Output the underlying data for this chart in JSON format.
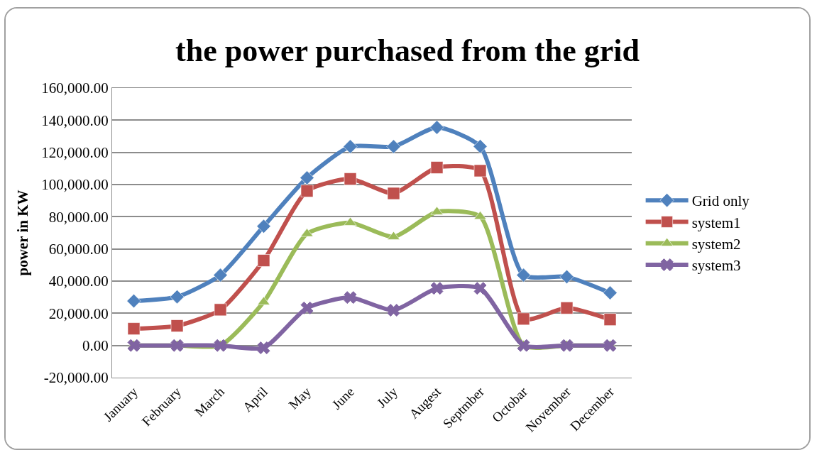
{
  "chart_data": {
    "type": "line",
    "title": "the power purchased from the grid",
    "ylabel": "power in KW",
    "categories": [
      "January",
      "February",
      "March",
      "April",
      "May",
      "June",
      "July",
      "Augest",
      "Septmber",
      "Octobar",
      "November",
      "December"
    ],
    "series": [
      {
        "name": "Grid only",
        "color": "#4f81bd",
        "marker": "diamond",
        "values": [
          27600,
          30200,
          43700,
          74100,
          104200,
          123600,
          123600,
          135500,
          123700,
          43700,
          42700,
          32700
        ]
      },
      {
        "name": "system1",
        "color": "#c0504d",
        "marker": "square",
        "values": [
          10400,
          12200,
          22200,
          52800,
          96000,
          103500,
          94500,
          110600,
          108600,
          16500,
          23300,
          16100
        ]
      },
      {
        "name": "system2",
        "color": "#9bbb59",
        "marker": "triangle",
        "values": [
          0,
          0,
          0,
          27000,
          69400,
          76300,
          67500,
          83000,
          80100,
          0,
          0,
          0
        ]
      },
      {
        "name": "system3",
        "color": "#8064a2",
        "marker": "cross",
        "values": [
          0,
          0,
          0,
          -1500,
          23300,
          29800,
          21900,
          35500,
          35500,
          0,
          0,
          0
        ]
      }
    ],
    "ylim": [
      -20000,
      160000
    ],
    "yticks": [
      {
        "value": -20000,
        "label": "-20,000.00"
      },
      {
        "value": 0,
        "label": "0.00"
      },
      {
        "value": 20000,
        "label": "20,000.00"
      },
      {
        "value": 40000,
        "label": "40,000.00"
      },
      {
        "value": 60000,
        "label": "60,000.00"
      },
      {
        "value": 80000,
        "label": "80,000.00"
      },
      {
        "value": 100000,
        "label": "100,000.00"
      },
      {
        "value": 120000,
        "label": "120,000.00"
      },
      {
        "value": 140000,
        "label": "140,000.00"
      },
      {
        "value": 160000,
        "label": "160,000.00"
      }
    ],
    "grid": "y",
    "legend": "right",
    "line_style": "solid"
  }
}
